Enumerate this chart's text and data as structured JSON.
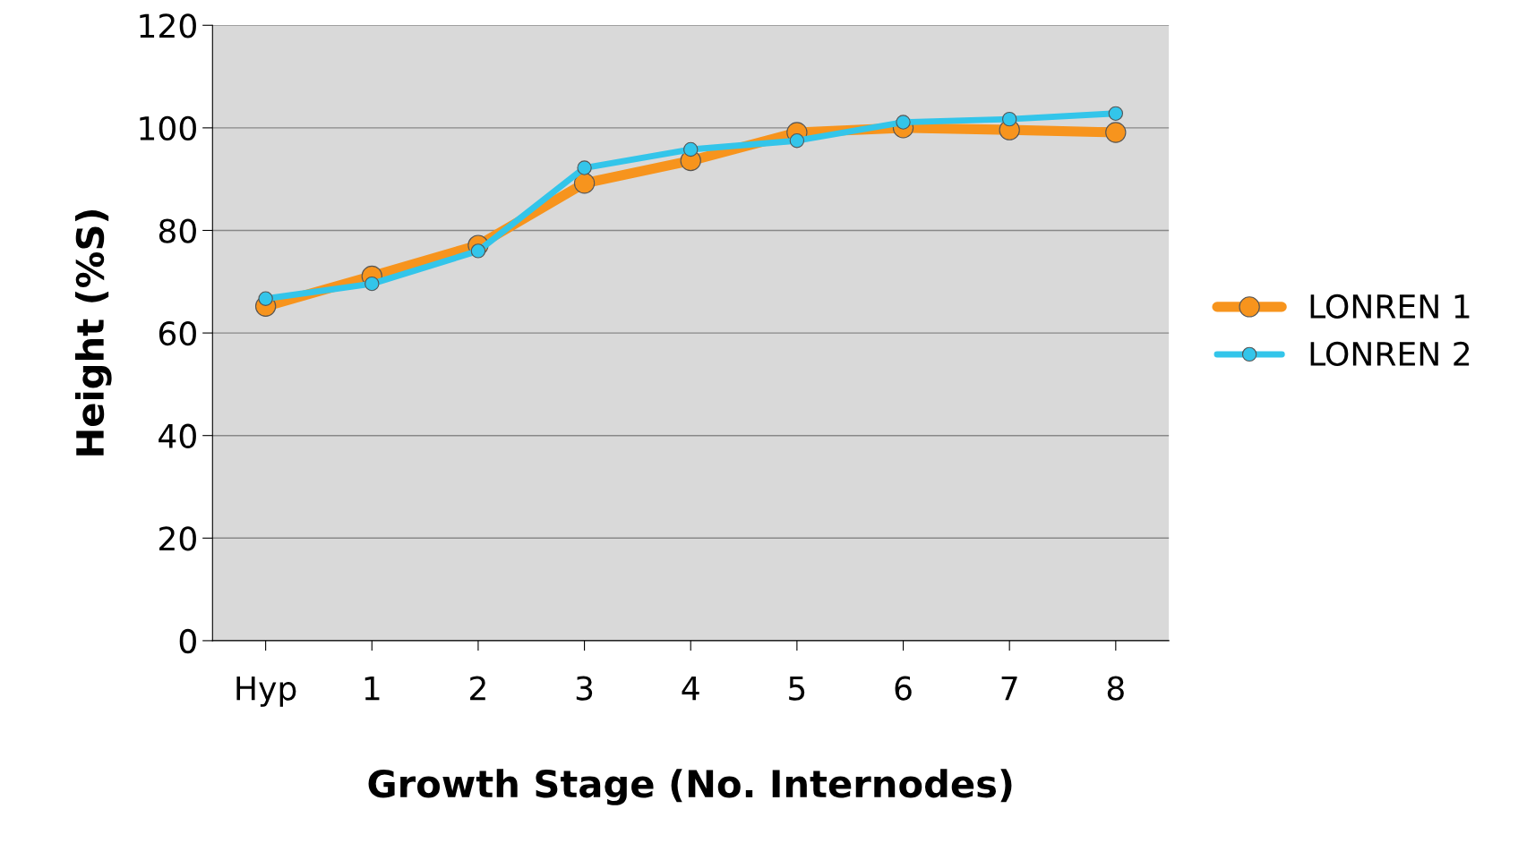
{
  "chart_data": {
    "type": "line",
    "xlabel": "Growth Stage (No. Internodes)",
    "ylabel": "Height (%S)",
    "categories": [
      "Hyp",
      "1",
      "2",
      "3",
      "4",
      "5",
      "6",
      "7",
      "8"
    ],
    "series": [
      {
        "name": "LONREN 1",
        "color": "#f7941d",
        "values": [
          65.2,
          71.1,
          77.1,
          89.2,
          93.6,
          99.1,
          100,
          99.6,
          99.1
        ]
      },
      {
        "name": "LONREN 2",
        "color": "#33c5ea",
        "values": [
          66.7,
          69.6,
          76,
          92.2,
          95.8,
          97.5,
          101.1,
          101.7,
          102.8
        ]
      }
    ],
    "ylim": [
      0,
      120
    ],
    "yticks": [
      0,
      20,
      40,
      60,
      80,
      100,
      120
    ],
    "grid": "y",
    "legend": "right",
    "marker": "circle",
    "line_style": "solid"
  }
}
